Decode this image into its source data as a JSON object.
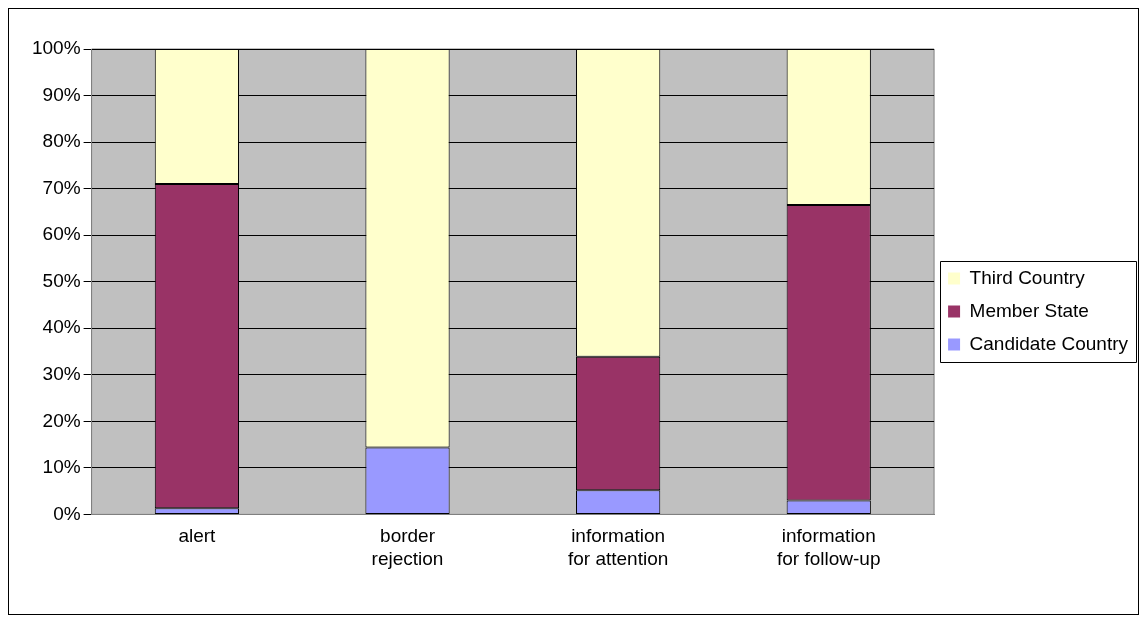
{
  "chart_data": {
    "type": "bar",
    "stacked": true,
    "categories": [
      "alert",
      "border rejection",
      "information for attention",
      "information for follow-up"
    ],
    "series": [
      {
        "name": "Candidate Country",
        "color": "#9999ff",
        "values": [
          1.3,
          14.4,
          5.2,
          3.0
        ]
      },
      {
        "name": "Member State",
        "color": "#993366",
        "values": [
          69.7,
          0,
          28.7,
          63.5
        ]
      },
      {
        "name": "Third Country",
        "color": "#ffffcc",
        "values": [
          29,
          85.6,
          66.1,
          33.5
        ]
      }
    ],
    "ylim": [
      0,
      100
    ],
    "yticks": [
      {
        "value": 0,
        "label": "0%"
      },
      {
        "value": 10,
        "label": "10%"
      },
      {
        "value": 20,
        "label": "20%"
      },
      {
        "value": 30,
        "label": "30%"
      },
      {
        "value": 40,
        "label": "40%"
      },
      {
        "value": 50,
        "label": "50%"
      },
      {
        "value": 60,
        "label": "60%"
      },
      {
        "value": 70,
        "label": "70%"
      },
      {
        "value": 80,
        "label": "80%"
      },
      {
        "value": 90,
        "label": "90%"
      },
      {
        "value": 100,
        "label": "100%"
      }
    ],
    "grid": "y",
    "legend": "right"
  }
}
